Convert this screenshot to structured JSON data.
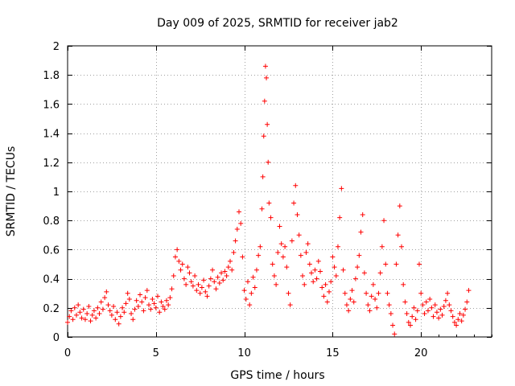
{
  "chart_data": {
    "type": "scatter",
    "title": "Day 009 of 2025, SRMTID for receiver jab2",
    "xlabel": "GPS time / hours",
    "ylabel": "SRMTID / TECUs",
    "xlim": [
      0,
      24
    ],
    "ylim": [
      0,
      2
    ],
    "xticks": [
      0,
      5,
      10,
      15,
      20
    ],
    "yticks": [
      0,
      0.2,
      0.4,
      0.6,
      0.8,
      1,
      1.2,
      1.4,
      1.6,
      1.8,
      2
    ],
    "xtick_labels": [
      "0",
      "5",
      "10",
      "15",
      "20"
    ],
    "ytick_labels": [
      "0",
      "0.2",
      "0.4",
      "0.6",
      "0.8",
      "1",
      "1.2",
      "1.4",
      "1.6",
      "1.8",
      "2"
    ],
    "grid": true,
    "marker": "+",
    "marker_color": "#ff0000",
    "series": [
      {
        "name": "SRMTID",
        "points": [
          [
            0.0,
            0.1
          ],
          [
            0.1,
            0.14
          ],
          [
            0.2,
            0.18
          ],
          [
            0.3,
            0.12
          ],
          [
            0.4,
            0.2
          ],
          [
            0.5,
            0.15
          ],
          [
            0.6,
            0.22
          ],
          [
            0.7,
            0.17
          ],
          [
            0.8,
            0.13
          ],
          [
            0.9,
            0.19
          ],
          [
            1.0,
            0.12
          ],
          [
            1.1,
            0.16
          ],
          [
            1.2,
            0.21
          ],
          [
            1.3,
            0.11
          ],
          [
            1.4,
            0.15
          ],
          [
            1.5,
            0.18
          ],
          [
            1.6,
            0.13
          ],
          [
            1.7,
            0.2
          ],
          [
            1.8,
            0.16
          ],
          [
            1.9,
            0.24
          ],
          [
            2.0,
            0.19
          ],
          [
            2.1,
            0.27
          ],
          [
            2.2,
            0.31
          ],
          [
            2.3,
            0.22
          ],
          [
            2.4,
            0.18
          ],
          [
            2.5,
            0.15
          ],
          [
            2.6,
            0.21
          ],
          [
            2.7,
            0.12
          ],
          [
            2.8,
            0.17
          ],
          [
            2.9,
            0.09
          ],
          [
            3.0,
            0.14
          ],
          [
            3.1,
            0.2
          ],
          [
            3.2,
            0.17
          ],
          [
            3.3,
            0.23
          ],
          [
            3.4,
            0.3
          ],
          [
            3.5,
            0.26
          ],
          [
            3.6,
            0.16
          ],
          [
            3.7,
            0.12
          ],
          [
            3.8,
            0.19
          ],
          [
            3.9,
            0.25
          ],
          [
            4.0,
            0.21
          ],
          [
            4.1,
            0.29
          ],
          [
            4.2,
            0.24
          ],
          [
            4.3,
            0.18
          ],
          [
            4.4,
            0.27
          ],
          [
            4.5,
            0.32
          ],
          [
            4.6,
            0.22
          ],
          [
            4.7,
            0.19
          ],
          [
            4.8,
            0.26
          ],
          [
            4.9,
            0.23
          ],
          [
            5.0,
            0.2
          ],
          [
            5.1,
            0.28
          ],
          [
            5.2,
            0.17
          ],
          [
            5.3,
            0.24
          ],
          [
            5.4,
            0.21
          ],
          [
            5.5,
            0.19
          ],
          [
            5.6,
            0.25
          ],
          [
            5.7,
            0.22
          ],
          [
            5.8,
            0.27
          ],
          [
            5.9,
            0.33
          ],
          [
            6.0,
            0.42
          ],
          [
            6.1,
            0.55
          ],
          [
            6.2,
            0.6
          ],
          [
            6.3,
            0.52
          ],
          [
            6.4,
            0.46
          ],
          [
            6.5,
            0.5
          ],
          [
            6.6,
            0.4
          ],
          [
            6.7,
            0.36
          ],
          [
            6.8,
            0.48
          ],
          [
            6.9,
            0.44
          ],
          [
            7.0,
            0.38
          ],
          [
            7.1,
            0.35
          ],
          [
            7.2,
            0.42
          ],
          [
            7.3,
            0.32
          ],
          [
            7.4,
            0.36
          ],
          [
            7.5,
            0.3
          ],
          [
            7.6,
            0.34
          ],
          [
            7.7,
            0.39
          ],
          [
            7.8,
            0.31
          ],
          [
            7.9,
            0.28
          ],
          [
            8.0,
            0.35
          ],
          [
            8.1,
            0.4
          ],
          [
            8.2,
            0.46
          ],
          [
            8.3,
            0.38
          ],
          [
            8.4,
            0.33
          ],
          [
            8.5,
            0.41
          ],
          [
            8.6,
            0.37
          ],
          [
            8.7,
            0.44
          ],
          [
            8.8,
            0.39
          ],
          [
            8.9,
            0.45
          ],
          [
            9.0,
            0.42
          ],
          [
            9.1,
            0.48
          ],
          [
            9.2,
            0.52
          ],
          [
            9.3,
            0.46
          ],
          [
            9.4,
            0.58
          ],
          [
            9.5,
            0.66
          ],
          [
            9.6,
            0.74
          ],
          [
            9.7,
            0.86
          ],
          [
            9.8,
            0.78
          ],
          [
            9.9,
            0.55
          ],
          [
            10.0,
            0.32
          ],
          [
            10.1,
            0.26
          ],
          [
            10.2,
            0.38
          ],
          [
            10.3,
            0.22
          ],
          [
            10.4,
            0.3
          ],
          [
            10.5,
            0.41
          ],
          [
            10.6,
            0.34
          ],
          [
            10.7,
            0.46
          ],
          [
            10.8,
            0.56
          ],
          [
            10.9,
            0.62
          ],
          [
            11.0,
            0.88
          ],
          [
            11.05,
            1.1
          ],
          [
            11.1,
            1.38
          ],
          [
            11.15,
            1.62
          ],
          [
            11.2,
            1.86
          ],
          [
            11.25,
            1.78
          ],
          [
            11.3,
            1.46
          ],
          [
            11.35,
            1.2
          ],
          [
            11.4,
            0.92
          ],
          [
            11.5,
            0.82
          ],
          [
            11.6,
            0.5
          ],
          [
            11.7,
            0.42
          ],
          [
            11.8,
            0.36
          ],
          [
            11.9,
            0.58
          ],
          [
            12.0,
            0.76
          ],
          [
            12.1,
            0.64
          ],
          [
            12.2,
            0.55
          ],
          [
            12.3,
            0.62
          ],
          [
            12.4,
            0.48
          ],
          [
            12.5,
            0.3
          ],
          [
            12.6,
            0.22
          ],
          [
            12.7,
            0.66
          ],
          [
            12.8,
            0.92
          ],
          [
            12.9,
            1.04
          ],
          [
            13.0,
            0.84
          ],
          [
            13.1,
            0.7
          ],
          [
            13.2,
            0.56
          ],
          [
            13.3,
            0.42
          ],
          [
            13.4,
            0.36
          ],
          [
            13.5,
            0.58
          ],
          [
            13.6,
            0.64
          ],
          [
            13.7,
            0.5
          ],
          [
            13.8,
            0.44
          ],
          [
            13.9,
            0.38
          ],
          [
            14.0,
            0.46
          ],
          [
            14.1,
            0.4
          ],
          [
            14.2,
            0.52
          ],
          [
            14.3,
            0.45
          ],
          [
            14.4,
            0.34
          ],
          [
            14.5,
            0.28
          ],
          [
            14.6,
            0.36
          ],
          [
            14.7,
            0.24
          ],
          [
            14.8,
            0.31
          ],
          [
            14.9,
            0.38
          ],
          [
            15.0,
            0.55
          ],
          [
            15.1,
            0.48
          ],
          [
            15.2,
            0.42
          ],
          [
            15.3,
            0.62
          ],
          [
            15.4,
            0.82
          ],
          [
            15.5,
            1.02
          ],
          [
            15.6,
            0.46
          ],
          [
            15.7,
            0.3
          ],
          [
            15.8,
            0.22
          ],
          [
            15.9,
            0.18
          ],
          [
            16.0,
            0.26
          ],
          [
            16.1,
            0.32
          ],
          [
            16.2,
            0.24
          ],
          [
            16.3,
            0.4
          ],
          [
            16.4,
            0.48
          ],
          [
            16.5,
            0.56
          ],
          [
            16.6,
            0.72
          ],
          [
            16.7,
            0.84
          ],
          [
            16.8,
            0.44
          ],
          [
            16.9,
            0.3
          ],
          [
            17.0,
            0.22
          ],
          [
            17.1,
            0.18
          ],
          [
            17.2,
            0.28
          ],
          [
            17.3,
            0.36
          ],
          [
            17.4,
            0.26
          ],
          [
            17.5,
            0.2
          ],
          [
            17.6,
            0.3
          ],
          [
            17.7,
            0.44
          ],
          [
            17.8,
            0.62
          ],
          [
            17.9,
            0.8
          ],
          [
            18.0,
            0.5
          ],
          [
            18.1,
            0.3
          ],
          [
            18.2,
            0.22
          ],
          [
            18.3,
            0.16
          ],
          [
            18.4,
            0.08
          ],
          [
            18.5,
            0.02
          ],
          [
            18.6,
            0.5
          ],
          [
            18.7,
            0.7
          ],
          [
            18.8,
            0.9
          ],
          [
            18.9,
            0.62
          ],
          [
            19.0,
            0.36
          ],
          [
            19.1,
            0.24
          ],
          [
            19.2,
            0.16
          ],
          [
            19.3,
            0.1
          ],
          [
            19.4,
            0.08
          ],
          [
            19.5,
            0.14
          ],
          [
            19.6,
            0.2
          ],
          [
            19.7,
            0.12
          ],
          [
            19.8,
            0.18
          ],
          [
            19.9,
            0.5
          ],
          [
            20.0,
            0.3
          ],
          [
            20.1,
            0.22
          ],
          [
            20.2,
            0.16
          ],
          [
            20.3,
            0.24
          ],
          [
            20.4,
            0.18
          ],
          [
            20.5,
            0.26
          ],
          [
            20.6,
            0.2
          ],
          [
            20.7,
            0.14
          ],
          [
            20.8,
            0.22
          ],
          [
            20.9,
            0.17
          ],
          [
            21.0,
            0.13
          ],
          [
            21.1,
            0.19
          ],
          [
            21.2,
            0.15
          ],
          [
            21.3,
            0.21
          ],
          [
            21.4,
            0.25
          ],
          [
            21.5,
            0.3
          ],
          [
            21.6,
            0.22
          ],
          [
            21.7,
            0.18
          ],
          [
            21.8,
            0.14
          ],
          [
            21.9,
            0.1
          ],
          [
            22.0,
            0.08
          ],
          [
            22.1,
            0.12
          ],
          [
            22.2,
            0.16
          ],
          [
            22.3,
            0.11
          ],
          [
            22.4,
            0.15
          ],
          [
            22.5,
            0.19
          ],
          [
            22.6,
            0.24
          ],
          [
            22.7,
            0.32
          ]
        ]
      }
    ]
  }
}
